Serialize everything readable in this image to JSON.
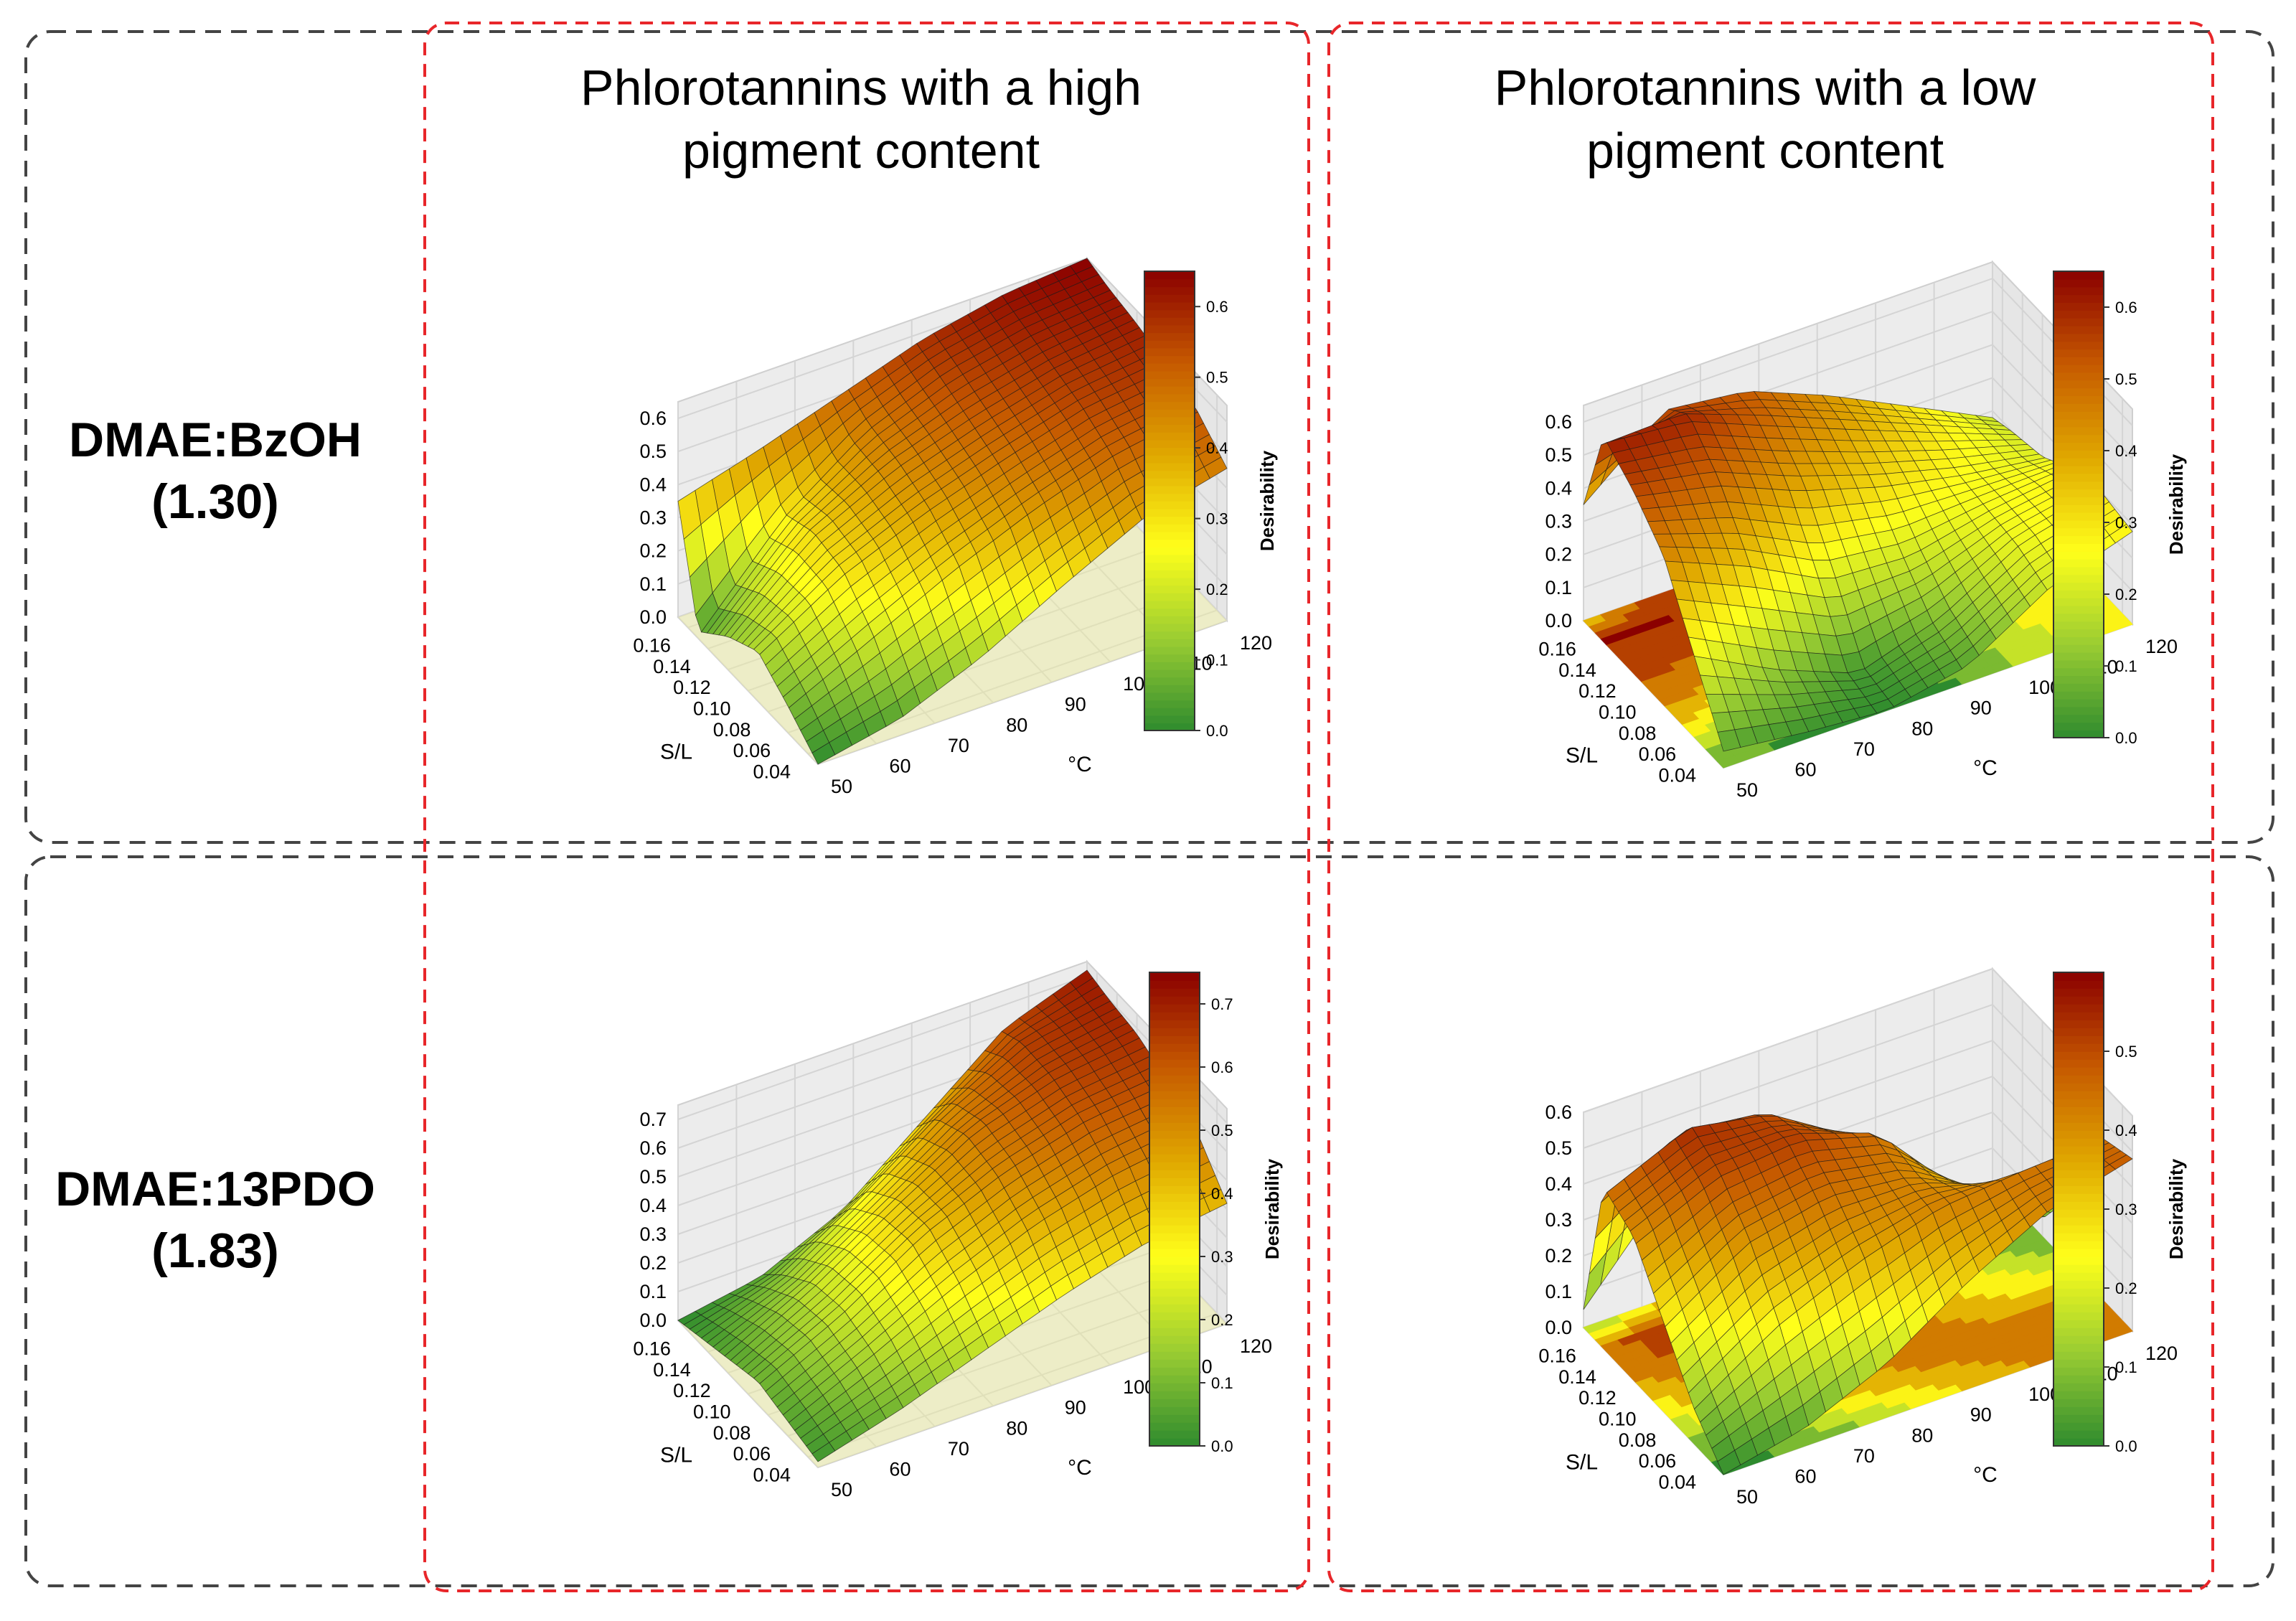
{
  "column_titles": [
    {
      "line1": "Phlorotannins with a high",
      "line2": "pigment content"
    },
    {
      "line1": "Phlorotannins with a low",
      "line2": "pigment content"
    }
  ],
  "row_labels": [
    {
      "line1": "DMAE:BzOH",
      "line2": "(1.30)"
    },
    {
      "line1": "DMAE:13PDO",
      "line2": "(1.83)"
    }
  ],
  "colors": {
    "group_border": "#444444",
    "column_border": "#e8262a",
    "colormap": [
      "#2e8b2e",
      "#9acd32",
      "#ffff1a",
      "#e0a800",
      "#c65a00",
      "#8b0000"
    ]
  },
  "chart_data": [
    {
      "type": "surface3d",
      "row": "DMAE:BzOH (1.30)",
      "column": "Phlorotannins with a high pigment content",
      "xlabel": "S/L",
      "ylabel": "°C",
      "zlabel": "",
      "colorbar_label": "Desirability",
      "x_ticks": [
        "0.04",
        "0.06",
        "0.08",
        "0.10",
        "0.12",
        "0.14",
        "0.16"
      ],
      "y_ticks": [
        "50",
        "60",
        "70",
        "80",
        "90",
        "100",
        "110",
        "120"
      ],
      "z_ticks": [
        "0.0",
        "0.1",
        "0.2",
        "0.3",
        "0.4",
        "0.5",
        "0.6"
      ],
      "colorbar_ticks": [
        "0.0",
        "0.1",
        "0.2",
        "0.3",
        "0.4",
        "0.5",
        "0.6"
      ],
      "xlim": [
        0.03,
        0.17
      ],
      "ylim": [
        50,
        120
      ],
      "zlim": [
        0,
        0.65
      ],
      "z_grid_x": [
        0.03,
        0.06,
        0.09,
        0.12,
        0.15,
        0.17
      ],
      "z_grid_y": [
        50,
        64,
        78,
        92,
        106,
        120
      ],
      "z_grid": [
        [
          0.0,
          0.05,
          0.15,
          0.28,
          0.4,
          0.46
        ],
        [
          0.08,
          0.2,
          0.32,
          0.42,
          0.5,
          0.54
        ],
        [
          0.15,
          0.3,
          0.4,
          0.48,
          0.55,
          0.58
        ],
        [
          0.1,
          0.32,
          0.44,
          0.52,
          0.58,
          0.61
        ],
        [
          0.02,
          0.28,
          0.46,
          0.56,
          0.61,
          0.63
        ],
        [
          0.35,
          0.42,
          0.5,
          0.58,
          0.63,
          0.65
        ]
      ],
      "floor_contour": false
    },
    {
      "type": "surface3d",
      "row": "DMAE:BzOH (1.30)",
      "column": "Phlorotannins with a low pigment content",
      "xlabel": "S/L",
      "ylabel": "°C",
      "zlabel": "",
      "colorbar_label": "Desirability",
      "x_ticks": [
        "0.04",
        "0.06",
        "0.08",
        "0.10",
        "0.12",
        "0.14",
        "0.16"
      ],
      "y_ticks": [
        "50",
        "60",
        "70",
        "80",
        "90",
        "100",
        "110",
        "120"
      ],
      "z_ticks": [
        "0.0",
        "0.1",
        "0.2",
        "0.3",
        "0.4",
        "0.5",
        "0.6"
      ],
      "colorbar_ticks": [
        "0.0",
        "0.1",
        "0.2",
        "0.3",
        "0.4",
        "0.5",
        "0.6"
      ],
      "xlim": [
        0.03,
        0.17
      ],
      "ylim": [
        50,
        120
      ],
      "zlim": [
        0,
        0.65
      ],
      "z_grid_x": [
        0.03,
        0.06,
        0.09,
        0.12,
        0.15,
        0.17
      ],
      "z_grid_y": [
        50,
        64,
        78,
        92,
        106,
        120
      ],
      "z_grid": [
        [
          0.05,
          0.02,
          0.0,
          0.05,
          0.2,
          0.28
        ],
        [
          0.25,
          0.12,
          0.02,
          0.1,
          0.24,
          0.3
        ],
        [
          0.45,
          0.35,
          0.22,
          0.2,
          0.25,
          0.28
        ],
        [
          0.55,
          0.5,
          0.4,
          0.32,
          0.26,
          0.22
        ],
        [
          0.62,
          0.6,
          0.5,
          0.4,
          0.3,
          0.2
        ],
        [
          0.35,
          0.55,
          0.52,
          0.42,
          0.3,
          0.18
        ]
      ],
      "floor_contour": true
    },
    {
      "type": "surface3d",
      "row": "DMAE:13PDO (1.83)",
      "column": "Phlorotannins with a high pigment content",
      "xlabel": "S/L",
      "ylabel": "°C",
      "zlabel": "",
      "colorbar_label": "Desirability",
      "x_ticks": [
        "0.04",
        "0.06",
        "0.08",
        "0.10",
        "0.12",
        "0.14",
        "0.16"
      ],
      "y_ticks": [
        "50",
        "60",
        "70",
        "80",
        "90",
        "100",
        "110",
        "120"
      ],
      "z_ticks": [
        "0.0",
        "0.1",
        "0.2",
        "0.3",
        "0.4",
        "0.5",
        "0.6",
        "0.7"
      ],
      "colorbar_ticks": [
        "0.0",
        "0.1",
        "0.2",
        "0.3",
        "0.4",
        "0.5",
        "0.6",
        "0.7"
      ],
      "xlim": [
        0.03,
        0.17
      ],
      "ylim": [
        50,
        120
      ],
      "zlim": [
        0,
        0.75
      ],
      "z_grid_x": [
        0.03,
        0.06,
        0.09,
        0.12,
        0.15,
        0.17
      ],
      "z_grid_y": [
        50,
        64,
        78,
        92,
        106,
        120
      ],
      "z_grid": [
        [
          0.02,
          0.1,
          0.2,
          0.3,
          0.38,
          0.42
        ],
        [
          0.05,
          0.18,
          0.32,
          0.44,
          0.52,
          0.56
        ],
        [
          0.08,
          0.22,
          0.4,
          0.52,
          0.6,
          0.63
        ],
        [
          0.05,
          0.2,
          0.38,
          0.55,
          0.64,
          0.68
        ],
        [
          0.02,
          0.12,
          0.3,
          0.5,
          0.65,
          0.7
        ],
        [
          0.0,
          0.05,
          0.18,
          0.4,
          0.62,
          0.72
        ]
      ],
      "floor_contour": false
    },
    {
      "type": "surface3d",
      "row": "DMAE:13PDO (1.83)",
      "column": "Phlorotannins with a low pigment content",
      "xlabel": "S/L",
      "ylabel": "°C",
      "zlabel": "",
      "colorbar_label": "Desirability",
      "x_ticks": [
        "0.04",
        "0.06",
        "0.08",
        "0.10",
        "0.12",
        "0.14",
        "0.16"
      ],
      "y_ticks": [
        "50",
        "60",
        "70",
        "80",
        "90",
        "100",
        "110",
        "120"
      ],
      "z_ticks": [
        "0.0",
        "0.1",
        "0.2",
        "0.3",
        "0.4",
        "0.5",
        "0.6"
      ],
      "colorbar_ticks": [
        "0.0",
        "0.1",
        "0.2",
        "0.3",
        "0.4",
        "0.5"
      ],
      "xlim": [
        0.03,
        0.17
      ],
      "ylim": [
        50,
        120
      ],
      "zlim": [
        0,
        0.6
      ],
      "z_grid_x": [
        0.03,
        0.06,
        0.09,
        0.12,
        0.15,
        0.17
      ],
      "z_grid_y": [
        50,
        64,
        78,
        92,
        106,
        120
      ],
      "z_grid": [
        [
          0.0,
          0.05,
          0.15,
          0.3,
          0.42,
          0.48
        ],
        [
          0.1,
          0.25,
          0.35,
          0.42,
          0.44,
          0.45
        ],
        [
          0.25,
          0.4,
          0.45,
          0.42,
          0.3,
          0.2
        ],
        [
          0.4,
          0.5,
          0.52,
          0.45,
          0.2,
          0.05
        ],
        [
          0.45,
          0.55,
          0.5,
          0.35,
          0.1,
          0.0
        ],
        [
          0.05,
          0.3,
          0.42,
          0.3,
          0.08,
          0.0
        ]
      ],
      "floor_contour": true
    }
  ]
}
